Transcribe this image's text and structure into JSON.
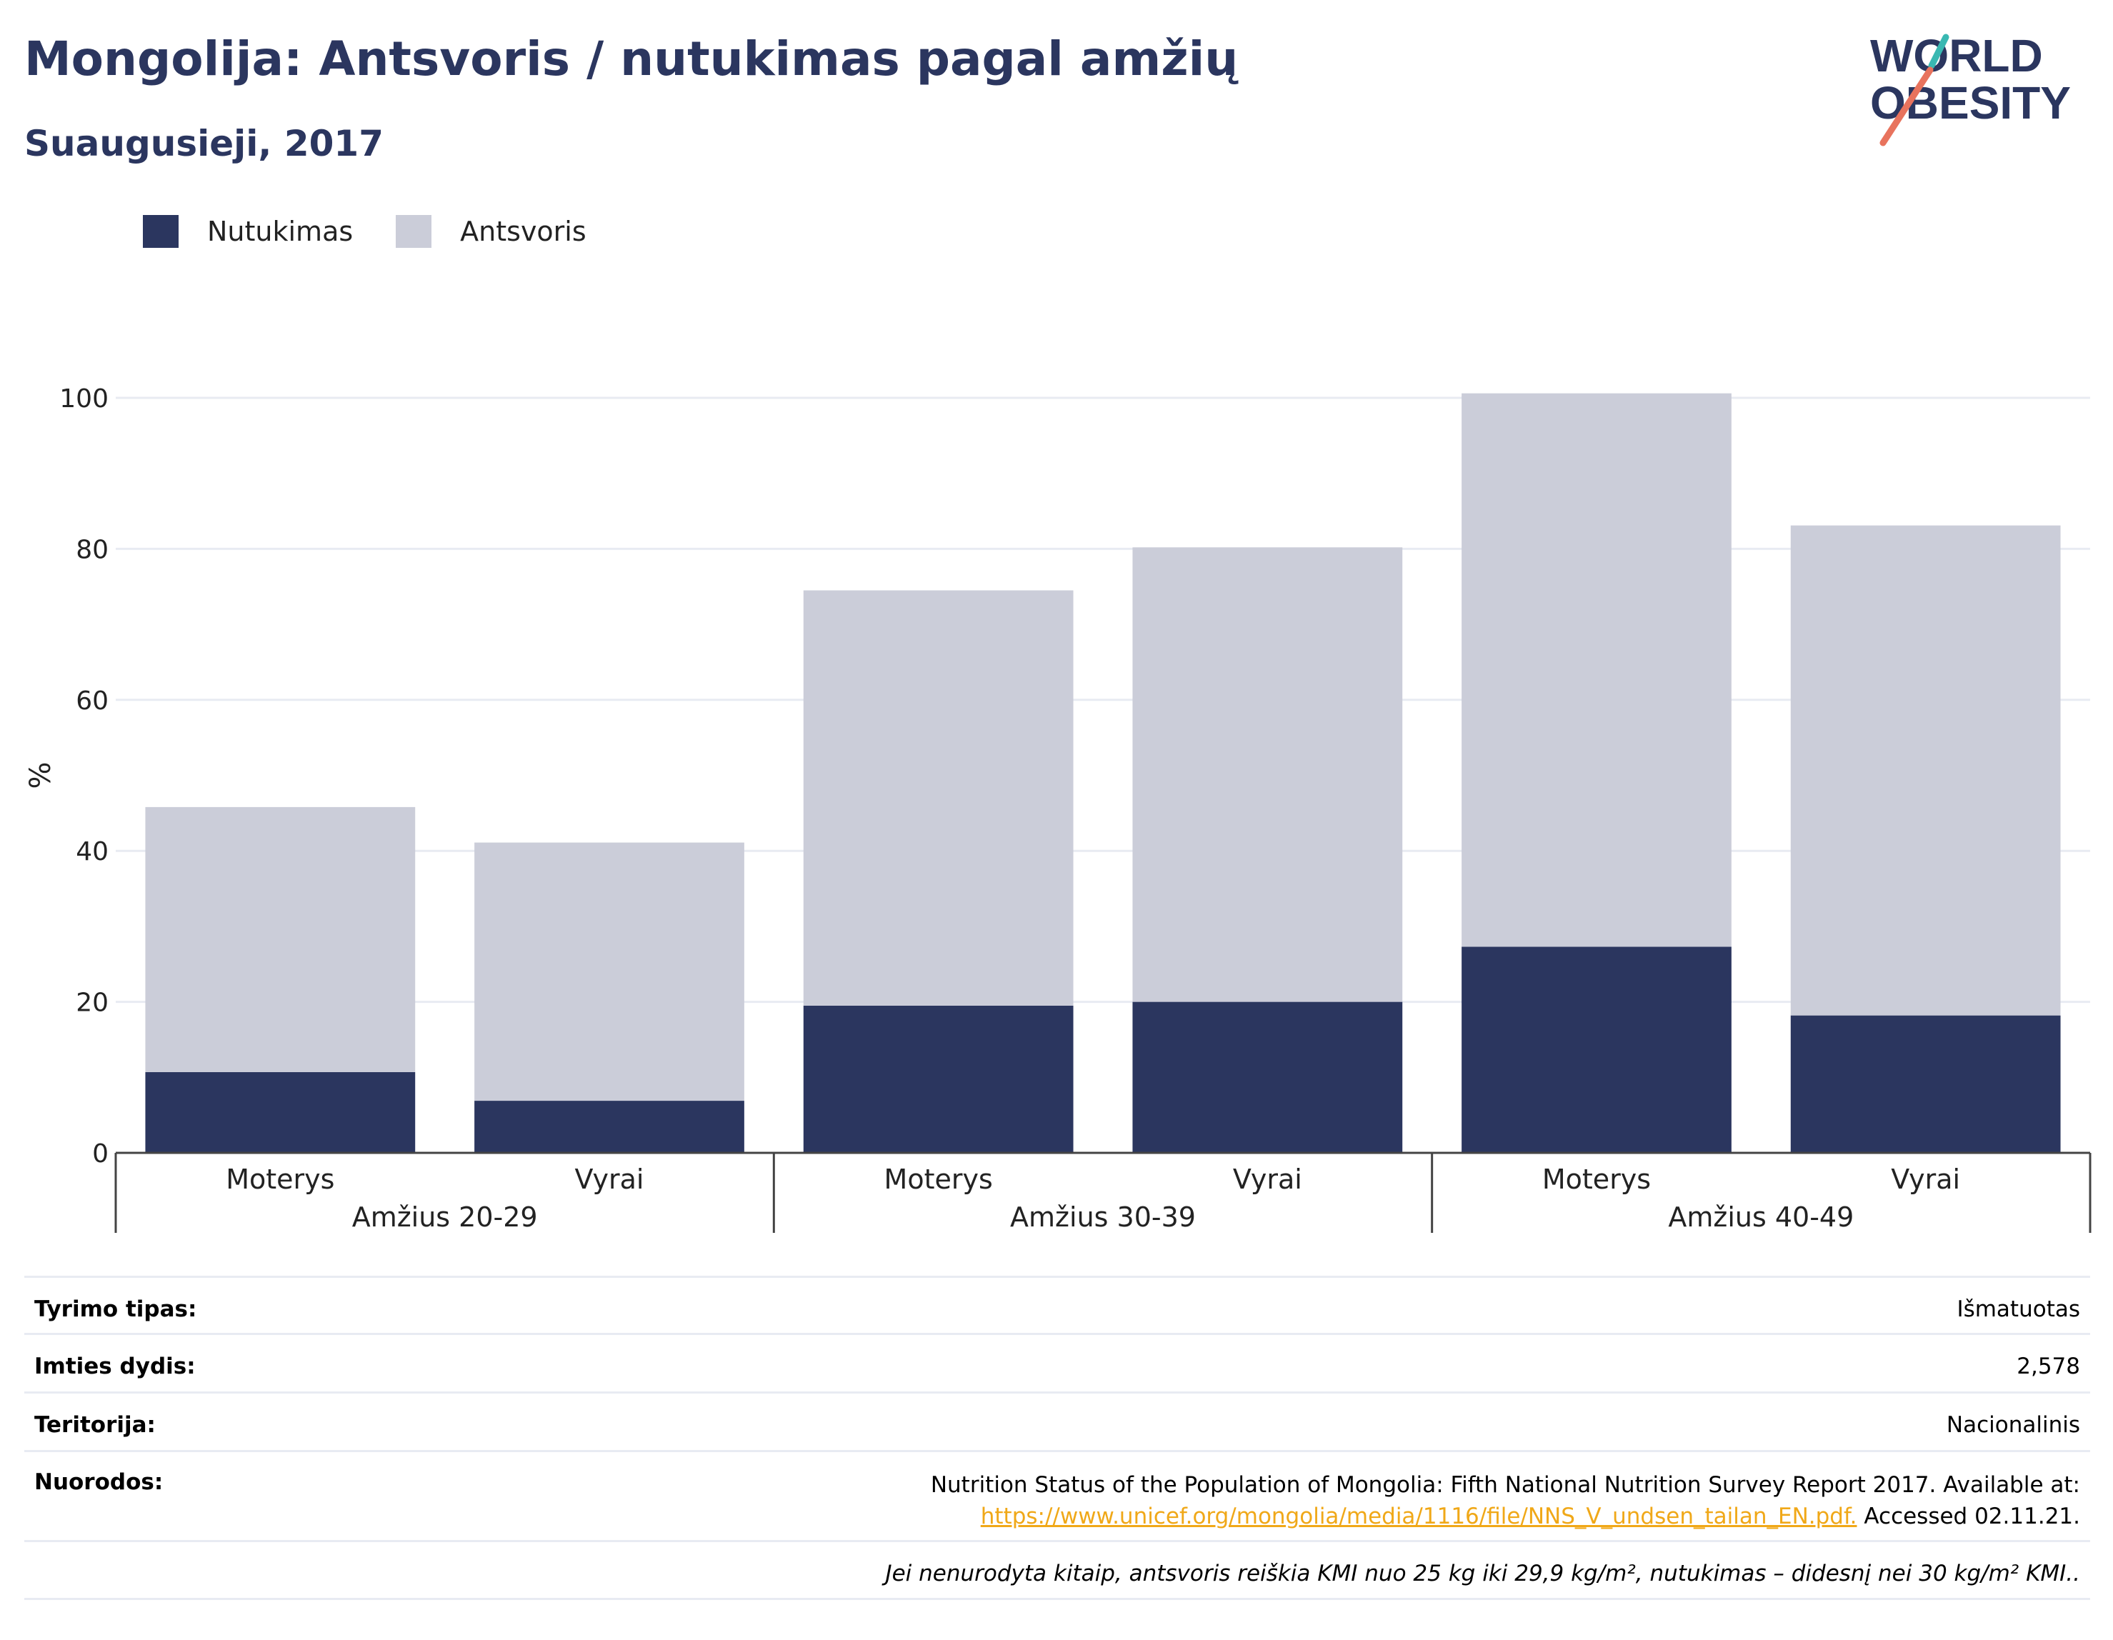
{
  "title": "Mongolija: Antsvoris / nutukimas pagal amžių",
  "subtitle": "Suaugusieji, 2017",
  "logo": {
    "line1": "WORLD",
    "line2": "OBESITY",
    "accent_colors": [
      "#39b8b2",
      "#e8735d"
    ]
  },
  "legend": [
    {
      "label": "Nutukimas",
      "color": "#2b365f"
    },
    {
      "label": "Antsvoris",
      "color": "#cbcdd9"
    }
  ],
  "chart_data": {
    "type": "bar",
    "stacked": true,
    "categories": [
      "Moterys",
      "Vyrai",
      "Moterys",
      "Vyrai",
      "Moterys",
      "Vyrai"
    ],
    "groups": [
      {
        "label": "Amžius 20-29",
        "categories": [
          0,
          1
        ]
      },
      {
        "label": "Amžius 30-39",
        "categories": [
          2,
          3
        ]
      },
      {
        "label": "Amžius 40-49",
        "categories": [
          4,
          5
        ]
      }
    ],
    "series": [
      {
        "name": "Nutukimas",
        "color": "#2b365f",
        "values": [
          10.7,
          6.9,
          19.5,
          20.0,
          27.3,
          18.2
        ]
      },
      {
        "name": "Antsvoris",
        "color": "#cbcdd9",
        "values": [
          35.1,
          34.2,
          55.0,
          60.2,
          73.3,
          64.9
        ]
      }
    ],
    "ylabel": "%",
    "xlabel": "",
    "ylim": [
      0,
      100
    ],
    "yticks": [
      0,
      20,
      40,
      60,
      80,
      100
    ],
    "grid": true,
    "legend_position": "top-left"
  },
  "info": {
    "survey_type_label": "Tyrimo tipas:",
    "survey_type_value": "Išmatuotas",
    "sample_size_label": "Imties dydis:",
    "sample_size_value": "2,578",
    "territory_label": "Teritorija:",
    "territory_value": "Nacionalinis",
    "references_label": "Nuorodos:",
    "references_text": "Nutrition Status of the Population of Mongolia: Fifth National Nutrition Survey Report 2017. Available at:",
    "references_link": "https://www.unicef.org/mongolia/media/1116/file/NNS_V_undsen_tailan_EN.pdf.",
    "references_accessed": "Accessed 02.11.21.",
    "note": "Jei nenurodyta kitaip, antsvoris reiškia KMI nuo 25 kg iki 29,9 kg/m², nutukimas – didesnį nei 30 kg/m² KMI.."
  }
}
